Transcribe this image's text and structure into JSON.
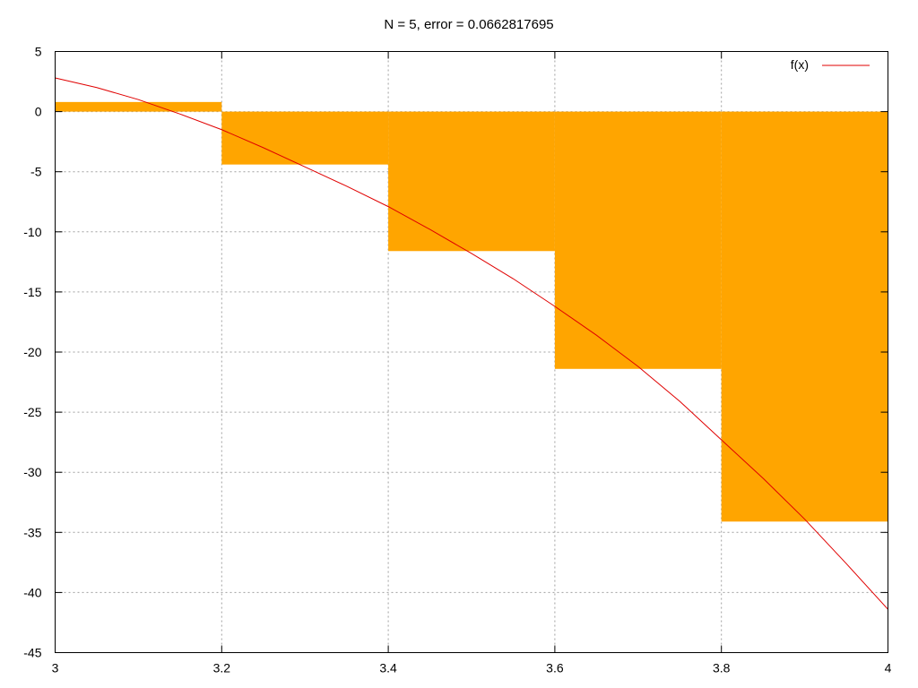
{
  "chart_data": {
    "type": "bar",
    "title": "N = 5, error = 0.0662817695",
    "xlabel": "",
    "ylabel": "",
    "xlim": [
      3,
      4
    ],
    "ylim": [
      -45,
      5
    ],
    "x_ticks": [
      3,
      3.2,
      3.4,
      3.6,
      3.8,
      4
    ],
    "x_tick_labels": [
      "3",
      "3.2",
      "3.4",
      "3.6",
      "3.8",
      "4"
    ],
    "y_ticks": [
      5,
      0,
      -5,
      -10,
      -15,
      -20,
      -25,
      -30,
      -35,
      -40,
      -45
    ],
    "y_tick_labels": [
      "5",
      "0",
      "-5",
      "-10",
      "-15",
      "-20",
      "-25",
      "-30",
      "-35",
      "-40",
      "-45"
    ],
    "grid": true,
    "legend_position": "top-right",
    "bars": {
      "color": "#ffa500",
      "x_start": [
        3.0,
        3.2,
        3.4,
        3.6,
        3.8
      ],
      "x_end": [
        3.2,
        3.4,
        3.6,
        3.8,
        4.0
      ],
      "values": [
        0.8,
        -4.4,
        -11.6,
        -21.4,
        -34.1
      ]
    },
    "series": [
      {
        "name": "f(x)",
        "color": "#e00000",
        "x": [
          3.0,
          3.05,
          3.1,
          3.15,
          3.2,
          3.25,
          3.3,
          3.35,
          3.4,
          3.45,
          3.5,
          3.55,
          3.6,
          3.65,
          3.7,
          3.75,
          3.8,
          3.85,
          3.9,
          3.95,
          4.0
        ],
        "values": [
          2.8,
          2.0,
          1.0,
          -0.2,
          -1.5,
          -3.0,
          -4.6,
          -6.2,
          -7.9,
          -9.8,
          -11.8,
          -13.9,
          -16.2,
          -18.6,
          -21.2,
          -24.1,
          -27.3,
          -30.5,
          -33.9,
          -37.6,
          -41.4
        ]
      }
    ]
  }
}
